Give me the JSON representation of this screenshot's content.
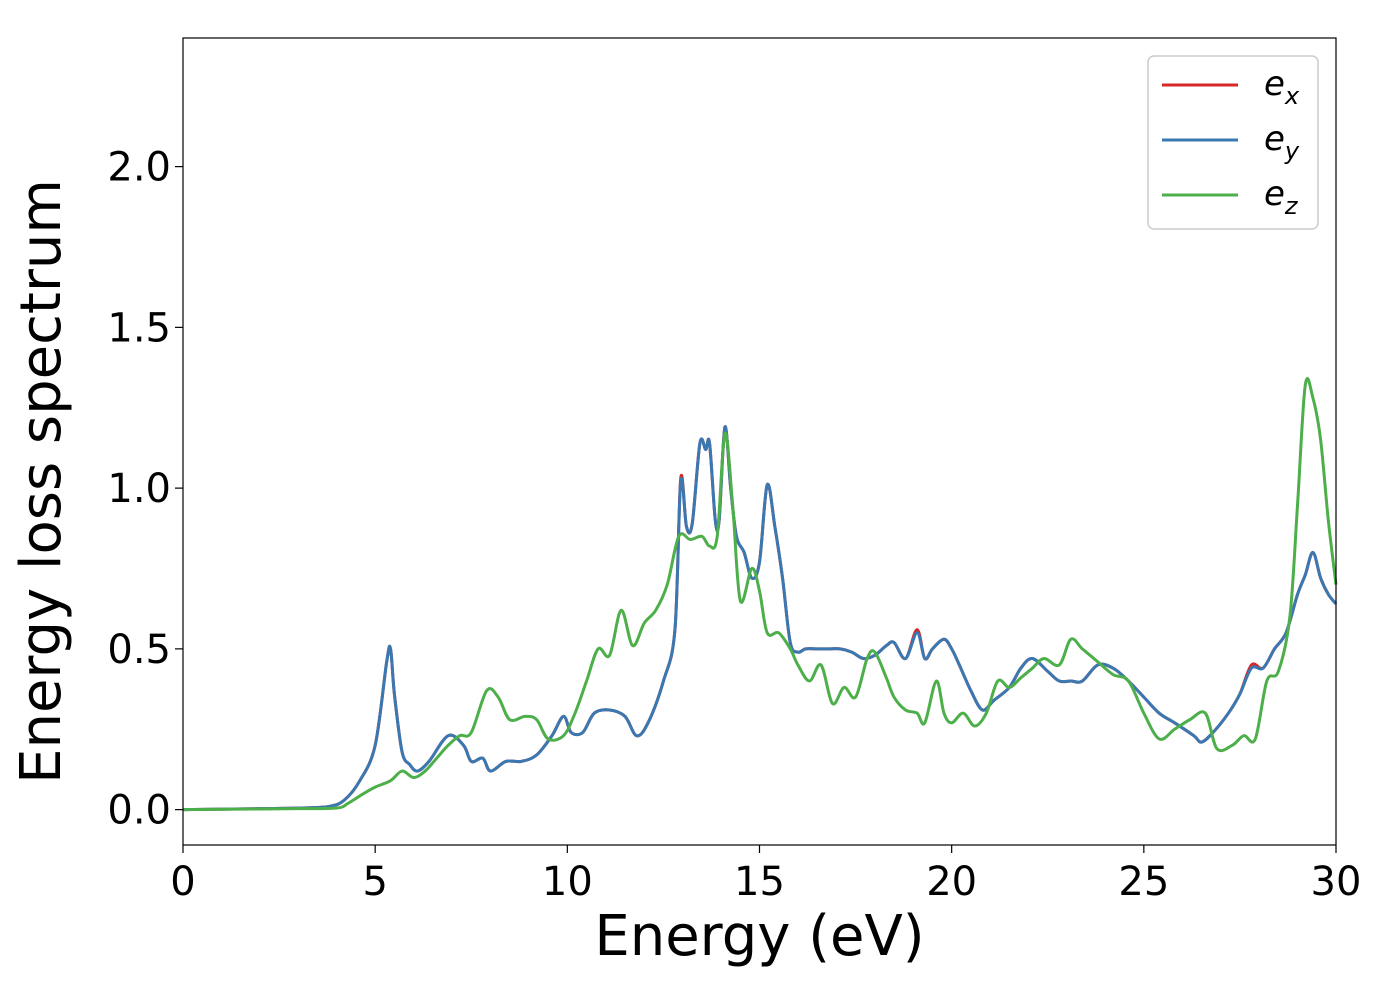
{
  "chart_data": {
    "type": "line",
    "title": "",
    "xlabel": "Energy (eV)",
    "ylabel": "Energy loss spectrum",
    "xlim": [
      0,
      30
    ],
    "ylim": [
      -0.11,
      2.4
    ],
    "xticks": [
      0,
      5,
      10,
      15,
      20,
      25,
      30
    ],
    "xtick_labels": [
      "0",
      "5",
      "10",
      "15",
      "20",
      "25",
      "30"
    ],
    "yticks": [
      0.0,
      0.5,
      1.0,
      1.5,
      2.0
    ],
    "ytick_labels": [
      "0.0",
      "0.5",
      "1.0",
      "1.5",
      "2.0"
    ],
    "grid": false,
    "legend_position": "top-right",
    "series": [
      {
        "name": "ex",
        "label_base": "e",
        "label_sub": "x",
        "color": "#d62728",
        "points": [
          [
            0,
            0
          ],
          [
            2,
            0.003
          ],
          [
            3,
            0.005
          ],
          [
            3.8,
            0.01
          ],
          [
            4.2,
            0.03
          ],
          [
            4.6,
            0.09
          ],
          [
            5.0,
            0.2
          ],
          [
            5.3,
            0.46
          ],
          [
            5.4,
            0.5
          ],
          [
            5.5,
            0.36
          ],
          [
            5.7,
            0.18
          ],
          [
            5.9,
            0.14
          ],
          [
            6.1,
            0.12
          ],
          [
            6.4,
            0.15
          ],
          [
            6.9,
            0.23
          ],
          [
            7.3,
            0.2
          ],
          [
            7.5,
            0.15
          ],
          [
            7.8,
            0.16
          ],
          [
            8.0,
            0.12
          ],
          [
            8.4,
            0.15
          ],
          [
            8.8,
            0.15
          ],
          [
            9.2,
            0.17
          ],
          [
            9.6,
            0.23
          ],
          [
            9.9,
            0.29
          ],
          [
            10.1,
            0.24
          ],
          [
            10.4,
            0.24
          ],
          [
            10.7,
            0.3
          ],
          [
            11.1,
            0.31
          ],
          [
            11.5,
            0.29
          ],
          [
            11.8,
            0.23
          ],
          [
            12.1,
            0.27
          ],
          [
            12.5,
            0.4
          ],
          [
            12.8,
            0.56
          ],
          [
            12.95,
            1.03
          ],
          [
            13.1,
            0.88
          ],
          [
            13.25,
            0.89
          ],
          [
            13.45,
            1.14
          ],
          [
            13.6,
            1.12
          ],
          [
            13.7,
            1.14
          ],
          [
            13.85,
            0.9
          ],
          [
            13.95,
            0.9
          ],
          [
            14.1,
            1.19
          ],
          [
            14.25,
            1.0
          ],
          [
            14.4,
            0.85
          ],
          [
            14.6,
            0.8
          ],
          [
            14.8,
            0.72
          ],
          [
            15.0,
            0.77
          ],
          [
            15.2,
            1.01
          ],
          [
            15.4,
            0.88
          ],
          [
            15.6,
            0.72
          ],
          [
            15.8,
            0.52
          ],
          [
            16.0,
            0.49
          ],
          [
            16.2,
            0.5
          ],
          [
            16.5,
            0.5
          ],
          [
            16.8,
            0.5
          ],
          [
            17.1,
            0.5
          ],
          [
            17.4,
            0.49
          ],
          [
            17.7,
            0.47
          ],
          [
            18.0,
            0.48
          ],
          [
            18.3,
            0.51
          ],
          [
            18.5,
            0.52
          ],
          [
            18.8,
            0.47
          ],
          [
            19.1,
            0.56
          ],
          [
            19.3,
            0.47
          ],
          [
            19.5,
            0.5
          ],
          [
            19.8,
            0.53
          ],
          [
            20.0,
            0.5
          ],
          [
            20.2,
            0.45
          ],
          [
            20.5,
            0.37
          ],
          [
            20.8,
            0.31
          ],
          [
            21.1,
            0.34
          ],
          [
            21.5,
            0.38
          ],
          [
            21.8,
            0.44
          ],
          [
            22.1,
            0.47
          ],
          [
            22.5,
            0.43
          ],
          [
            22.8,
            0.4
          ],
          [
            23.1,
            0.4
          ],
          [
            23.4,
            0.4
          ],
          [
            23.8,
            0.45
          ],
          [
            24.2,
            0.44
          ],
          [
            24.6,
            0.4
          ],
          [
            25.0,
            0.35
          ],
          [
            25.4,
            0.3
          ],
          [
            25.8,
            0.27
          ],
          [
            26.3,
            0.23
          ],
          [
            26.5,
            0.21
          ],
          [
            26.8,
            0.24
          ],
          [
            27.2,
            0.3
          ],
          [
            27.5,
            0.36
          ],
          [
            27.8,
            0.45
          ],
          [
            28.1,
            0.44
          ],
          [
            28.4,
            0.5
          ],
          [
            28.7,
            0.55
          ],
          [
            29.0,
            0.67
          ],
          [
            29.2,
            0.73
          ],
          [
            29.4,
            0.8
          ],
          [
            29.6,
            0.72
          ],
          [
            29.8,
            0.67
          ],
          [
            30.0,
            0.64
          ]
        ]
      },
      {
        "name": "ey",
        "label_base": "e",
        "label_sub": "y",
        "color": "#3a78b2",
        "points": [
          [
            0,
            0
          ],
          [
            2,
            0.003
          ],
          [
            3,
            0.005
          ],
          [
            3.8,
            0.01
          ],
          [
            4.2,
            0.03
          ],
          [
            4.6,
            0.09
          ],
          [
            5.0,
            0.2
          ],
          [
            5.3,
            0.46
          ],
          [
            5.4,
            0.5
          ],
          [
            5.5,
            0.36
          ],
          [
            5.7,
            0.18
          ],
          [
            5.9,
            0.14
          ],
          [
            6.1,
            0.12
          ],
          [
            6.4,
            0.15
          ],
          [
            6.9,
            0.23
          ],
          [
            7.3,
            0.2
          ],
          [
            7.5,
            0.15
          ],
          [
            7.8,
            0.16
          ],
          [
            8.0,
            0.12
          ],
          [
            8.4,
            0.15
          ],
          [
            8.8,
            0.15
          ],
          [
            9.2,
            0.17
          ],
          [
            9.6,
            0.23
          ],
          [
            9.9,
            0.29
          ],
          [
            10.1,
            0.24
          ],
          [
            10.4,
            0.24
          ],
          [
            10.7,
            0.3
          ],
          [
            11.1,
            0.31
          ],
          [
            11.5,
            0.29
          ],
          [
            11.8,
            0.23
          ],
          [
            12.1,
            0.27
          ],
          [
            12.5,
            0.4
          ],
          [
            12.8,
            0.56
          ],
          [
            12.95,
            1.02
          ],
          [
            13.1,
            0.88
          ],
          [
            13.25,
            0.89
          ],
          [
            13.45,
            1.14
          ],
          [
            13.6,
            1.12
          ],
          [
            13.7,
            1.14
          ],
          [
            13.85,
            0.9
          ],
          [
            13.95,
            0.9
          ],
          [
            14.1,
            1.19
          ],
          [
            14.25,
            1.0
          ],
          [
            14.4,
            0.85
          ],
          [
            14.6,
            0.8
          ],
          [
            14.8,
            0.72
          ],
          [
            15.0,
            0.77
          ],
          [
            15.2,
            1.01
          ],
          [
            15.4,
            0.88
          ],
          [
            15.6,
            0.72
          ],
          [
            15.8,
            0.52
          ],
          [
            16.0,
            0.49
          ],
          [
            16.2,
            0.5
          ],
          [
            16.5,
            0.5
          ],
          [
            16.8,
            0.5
          ],
          [
            17.1,
            0.5
          ],
          [
            17.4,
            0.49
          ],
          [
            17.7,
            0.47
          ],
          [
            18.0,
            0.48
          ],
          [
            18.3,
            0.51
          ],
          [
            18.5,
            0.52
          ],
          [
            18.8,
            0.47
          ],
          [
            19.1,
            0.55
          ],
          [
            19.3,
            0.47
          ],
          [
            19.5,
            0.5
          ],
          [
            19.8,
            0.53
          ],
          [
            20.0,
            0.5
          ],
          [
            20.2,
            0.45
          ],
          [
            20.5,
            0.37
          ],
          [
            20.8,
            0.31
          ],
          [
            21.1,
            0.34
          ],
          [
            21.5,
            0.38
          ],
          [
            21.8,
            0.44
          ],
          [
            22.1,
            0.47
          ],
          [
            22.5,
            0.43
          ],
          [
            22.8,
            0.4
          ],
          [
            23.1,
            0.4
          ],
          [
            23.4,
            0.4
          ],
          [
            23.8,
            0.45
          ],
          [
            24.2,
            0.44
          ],
          [
            24.6,
            0.4
          ],
          [
            25.0,
            0.35
          ],
          [
            25.4,
            0.3
          ],
          [
            25.8,
            0.27
          ],
          [
            26.3,
            0.23
          ],
          [
            26.5,
            0.21
          ],
          [
            26.8,
            0.24
          ],
          [
            27.2,
            0.3
          ],
          [
            27.5,
            0.36
          ],
          [
            27.8,
            0.44
          ],
          [
            28.1,
            0.44
          ],
          [
            28.4,
            0.5
          ],
          [
            28.7,
            0.55
          ],
          [
            29.0,
            0.67
          ],
          [
            29.2,
            0.73
          ],
          [
            29.4,
            0.8
          ],
          [
            29.6,
            0.72
          ],
          [
            29.8,
            0.67
          ],
          [
            30.0,
            0.64
          ]
        ]
      },
      {
        "name": "ez",
        "label_base": "e",
        "label_sub": "z",
        "color": "#4daf4a",
        "points": [
          [
            0,
            0
          ],
          [
            2,
            0.002
          ],
          [
            3,
            0.003
          ],
          [
            4.0,
            0.005
          ],
          [
            4.3,
            0.02
          ],
          [
            4.7,
            0.05
          ],
          [
            5.0,
            0.07
          ],
          [
            5.4,
            0.09
          ],
          [
            5.7,
            0.12
          ],
          [
            6.0,
            0.1
          ],
          [
            6.3,
            0.12
          ],
          [
            6.6,
            0.16
          ],
          [
            6.9,
            0.2
          ],
          [
            7.2,
            0.23
          ],
          [
            7.5,
            0.24
          ],
          [
            7.9,
            0.37
          ],
          [
            8.2,
            0.35
          ],
          [
            8.5,
            0.28
          ],
          [
            8.9,
            0.29
          ],
          [
            9.2,
            0.28
          ],
          [
            9.5,
            0.22
          ],
          [
            9.9,
            0.23
          ],
          [
            10.2,
            0.3
          ],
          [
            10.5,
            0.4
          ],
          [
            10.8,
            0.5
          ],
          [
            11.1,
            0.48
          ],
          [
            11.4,
            0.62
          ],
          [
            11.7,
            0.51
          ],
          [
            12.0,
            0.58
          ],
          [
            12.3,
            0.62
          ],
          [
            12.6,
            0.7
          ],
          [
            12.9,
            0.85
          ],
          [
            13.2,
            0.84
          ],
          [
            13.5,
            0.85
          ],
          [
            13.7,
            0.82
          ],
          [
            13.9,
            0.85
          ],
          [
            14.1,
            1.17
          ],
          [
            14.3,
            0.95
          ],
          [
            14.5,
            0.65
          ],
          [
            14.8,
            0.75
          ],
          [
            15.0,
            0.68
          ],
          [
            15.2,
            0.55
          ],
          [
            15.5,
            0.55
          ],
          [
            15.8,
            0.5
          ],
          [
            16.0,
            0.45
          ],
          [
            16.3,
            0.4
          ],
          [
            16.6,
            0.45
          ],
          [
            16.9,
            0.33
          ],
          [
            17.2,
            0.38
          ],
          [
            17.5,
            0.35
          ],
          [
            17.8,
            0.47
          ],
          [
            18.0,
            0.49
          ],
          [
            18.3,
            0.41
          ],
          [
            18.5,
            0.35
          ],
          [
            18.8,
            0.31
          ],
          [
            19.1,
            0.3
          ],
          [
            19.3,
            0.27
          ],
          [
            19.6,
            0.4
          ],
          [
            19.8,
            0.3
          ],
          [
            20.0,
            0.27
          ],
          [
            20.3,
            0.3
          ],
          [
            20.6,
            0.26
          ],
          [
            20.9,
            0.3
          ],
          [
            21.2,
            0.4
          ],
          [
            21.5,
            0.38
          ],
          [
            21.8,
            0.41
          ],
          [
            22.1,
            0.44
          ],
          [
            22.4,
            0.47
          ],
          [
            22.8,
            0.45
          ],
          [
            23.1,
            0.53
          ],
          [
            23.4,
            0.5
          ],
          [
            23.8,
            0.46
          ],
          [
            24.2,
            0.42
          ],
          [
            24.6,
            0.4
          ],
          [
            25.0,
            0.3
          ],
          [
            25.4,
            0.22
          ],
          [
            25.8,
            0.25
          ],
          [
            26.2,
            0.28
          ],
          [
            26.6,
            0.3
          ],
          [
            26.9,
            0.19
          ],
          [
            27.3,
            0.2
          ],
          [
            27.6,
            0.23
          ],
          [
            27.9,
            0.22
          ],
          [
            28.2,
            0.4
          ],
          [
            28.5,
            0.43
          ],
          [
            28.8,
            0.6
          ],
          [
            29.0,
            0.95
          ],
          [
            29.2,
            1.32
          ],
          [
            29.4,
            1.28
          ],
          [
            29.6,
            1.15
          ],
          [
            29.8,
            0.9
          ],
          [
            30.0,
            0.7
          ]
        ]
      }
    ]
  }
}
